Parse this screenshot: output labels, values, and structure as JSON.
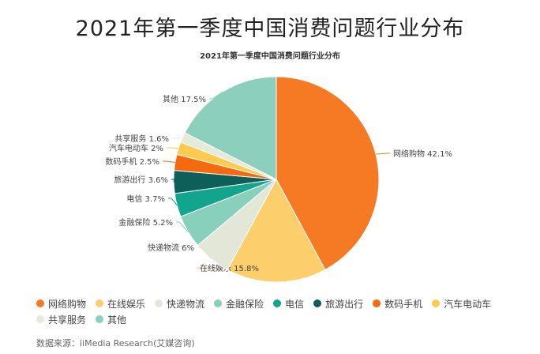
{
  "page": {
    "title": "2021年第一季度中国消费问题行业分布",
    "source": "数据来源：iiMedia Research(艾媒咨询)"
  },
  "chart_data": {
    "type": "pie",
    "title": "2021年第一季度中国消费问题行业分布",
    "slices": [
      {
        "name": "网络购物",
        "value": 42.1,
        "label": "网络购物 42.1%",
        "color": "#f57a23"
      },
      {
        "name": "在线娱乐",
        "value": 15.8,
        "label": "在线娱乐 15.8%",
        "color": "#fcce6c"
      },
      {
        "name": "快递物流",
        "value": 6,
        "label": "快递物流 6%",
        "color": "#e3e7d8"
      },
      {
        "name": "金融保险",
        "value": 5.2,
        "label": "金融保险 5.2%",
        "color": "#88d0bc"
      },
      {
        "name": "电信",
        "value": 3.7,
        "label": "电信 3.7%",
        "color": "#11a58e"
      },
      {
        "name": "旅游出行",
        "value": 3.6,
        "label": "旅游出行 3.6%",
        "color": "#0e5e5a"
      },
      {
        "name": "数码手机",
        "value": 2.5,
        "label": "数码手机 2.5%",
        "color": "#f56a0e"
      },
      {
        "name": "汽车电动车",
        "value": 2,
        "label": "汽车电动车 2%",
        "color": "#fccb50"
      },
      {
        "name": "共享服务",
        "value": 1.6,
        "label": "共享服务 1.6%",
        "color": "#e6eadb"
      },
      {
        "name": "其他",
        "value": 17.5,
        "label": "其他 17.5%",
        "color": "#8dcfbd"
      }
    ],
    "legend": [
      "网络购物",
      "在线娱乐",
      "快递物流",
      "金融保险",
      "电信",
      "旅游出行",
      "数码手机",
      "汽车电动车",
      "共享服务",
      "其他"
    ],
    "legend_position": "bottom"
  }
}
